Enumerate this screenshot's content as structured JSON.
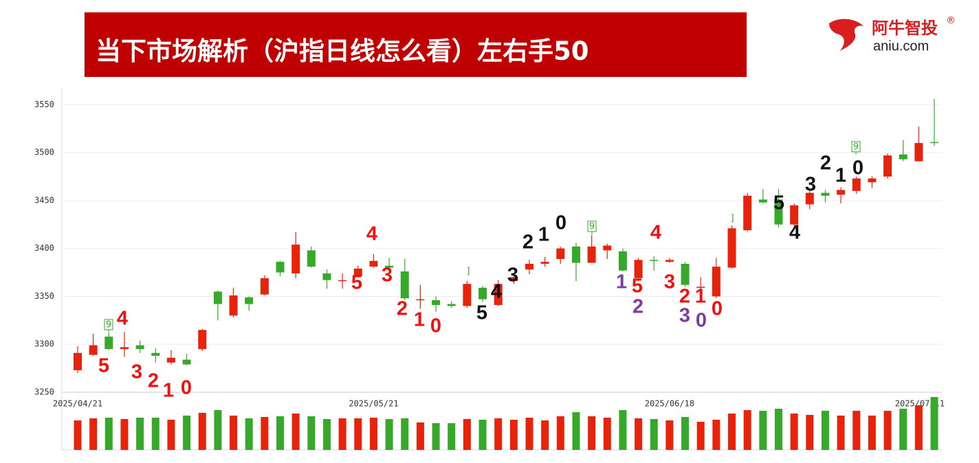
{
  "header": {
    "title": "当下市场解析（沪指日线怎么看）左右手50",
    "logo": "阿牛智投",
    "registered": "®",
    "site": "aniu.com"
  },
  "chart_data": {
    "type": "candlestick",
    "categories": [
      "2025/04/21",
      null,
      null,
      null,
      null,
      null,
      null,
      null,
      null,
      null,
      null,
      null,
      null,
      null,
      null,
      null,
      null,
      null,
      null,
      "2025/05/21",
      null,
      null,
      null,
      null,
      null,
      null,
      null,
      null,
      null,
      null,
      null,
      null,
      null,
      null,
      null,
      null,
      null,
      null,
      "2025/06/18",
      null,
      null,
      null,
      null,
      null,
      null,
      null,
      null,
      null,
      null,
      null,
      null,
      null,
      null,
      null,
      null,
      "2025/07/11"
    ],
    "open": [
      3273,
      3289,
      3308,
      3295,
      3299,
      3291,
      3281,
      3284,
      3295,
      3355,
      3330,
      3349,
      3352,
      3386,
      3374,
      3398,
      3374,
      3366,
      3371,
      3381,
      3382,
      3376,
      3346,
      3346,
      3342,
      3340,
      3359,
      3341,
      3366,
      3378,
      3384,
      3389,
      3402,
      3385,
      3398,
      3397,
      3369,
      3388,
      3386,
      3384,
      3359,
      3350,
      3380,
      3419,
      3451,
      3451,
      3425,
      3446,
      3458,
      3456,
      3460,
      3469,
      3475,
      3498,
      3491,
      3511
    ],
    "high": [
      3298,
      3311,
      3312,
      3313,
      3304,
      3296,
      3294,
      3290,
      3316,
      3356,
      3359,
      3350,
      3372,
      3387,
      3417,
      3402,
      3378,
      3374,
      3382,
      3394,
      3390,
      3389,
      3362,
      3350,
      3345,
      3366,
      3361,
      3367,
      3374,
      3388,
      3391,
      3402,
      3406,
      3414,
      3405,
      3400,
      3390,
      3392,
      3390,
      3386,
      3370,
      3390,
      3424,
      3458,
      3462,
      3462,
      3447,
      3460,
      3461,
      3464,
      3475,
      3475,
      3499,
      3513,
      3527,
      3556
    ],
    "low": [
      3270,
      3288,
      3294,
      3287,
      3291,
      3281,
      3279,
      3278,
      3293,
      3325,
      3328,
      3335,
      3351,
      3371,
      3369,
      3380,
      3358,
      3358,
      3370,
      3380,
      3372,
      3346,
      3337,
      3334,
      3338,
      3338,
      3344,
      3340,
      3363,
      3373,
      3381,
      3384,
      3366,
      3385,
      3389,
      3376,
      3366,
      3377,
      3385,
      3360,
      3350,
      3348,
      3379,
      3418,
      3447,
      3422,
      3423,
      3441,
      3448,
      3447,
      3457,
      3463,
      3473,
      3491,
      3491,
      3507
    ],
    "close": [
      3291,
      3299,
      3295,
      3297,
      3295,
      3288,
      3286,
      3279,
      3315,
      3342,
      3351,
      3342,
      3369,
      3375,
      3404,
      3381,
      3367,
      3367,
      3379,
      3387,
      3380,
      3348,
      3347,
      3341,
      3340,
      3363,
      3347,
      3363,
      3370,
      3384,
      3386,
      3400,
      3385,
      3402,
      3403,
      3377,
      3388,
      3387,
      3388,
      3362,
      3360,
      3381,
      3421,
      3455,
      3448,
      3425,
      3445,
      3458,
      3455,
      3461,
      3473,
      3473,
      3497,
      3493,
      3510,
      3510
    ],
    "volume": [
      43,
      46,
      47,
      45,
      47,
      47,
      44,
      50,
      54,
      58,
      50,
      46,
      48,
      49,
      53,
      49,
      45,
      46,
      46,
      47,
      45,
      46,
      40,
      39,
      39,
      45,
      44,
      46,
      44,
      47,
      43,
      49,
      55,
      49,
      47,
      58,
      46,
      45,
      43,
      48,
      41,
      44,
      53,
      58,
      57,
      60,
      53,
      51,
      57,
      50,
      57,
      50,
      57,
      60,
      65,
      77
    ],
    "up_color": "#e8230c",
    "down_color": "#36a82a",
    "ylim": [
      3250,
      3566
    ],
    "yticks": [
      3250,
      3300,
      3350,
      3400,
      3450,
      3500,
      3550
    ],
    "grid": true,
    "annotations": [
      {
        "text": "4",
        "color": "#f01010"
      },
      {
        "text": "5",
        "color": "#f01010"
      },
      {
        "text": "3",
        "color": "#f01010"
      },
      {
        "text": "2",
        "color": "#f01010"
      },
      {
        "text": "1",
        "color": "#f01010"
      },
      {
        "text": "0",
        "color": "#f01010"
      },
      {
        "text": "4",
        "color": "#f01010"
      },
      {
        "text": "3",
        "color": "#f01010"
      },
      {
        "text": "5",
        "color": "#f01010"
      },
      {
        "text": "2",
        "color": "#f01010"
      },
      {
        "text": "1",
        "color": "#f01010"
      },
      {
        "text": "0",
        "color": "#f01010"
      },
      {
        "text": "5",
        "color": "#111111"
      },
      {
        "text": "4",
        "color": "#111111"
      },
      {
        "text": "3",
        "color": "#111111"
      },
      {
        "text": "2",
        "color": "#111111"
      },
      {
        "text": "1",
        "color": "#111111"
      },
      {
        "text": "0",
        "color": "#111111"
      },
      {
        "text": "4",
        "color": "#f01010"
      },
      {
        "text": "1",
        "color": "#7a3c9e"
      },
      {
        "text": "5",
        "color": "#f01010"
      },
      {
        "text": "2",
        "color": "#7a3c9e"
      },
      {
        "text": "3",
        "color": "#f01010"
      },
      {
        "text": "2",
        "color": "#f01010"
      },
      {
        "text": "1",
        "color": "#f01010"
      },
      {
        "text": "0",
        "color": "#f01010"
      },
      {
        "text": "3",
        "color": "#7a3c9e"
      },
      {
        "text": "0",
        "color": "#7a3c9e"
      },
      {
        "text": "5",
        "color": "#111111"
      },
      {
        "text": "4",
        "color": "#111111"
      },
      {
        "text": "3",
        "color": "#111111"
      },
      {
        "text": "2",
        "color": "#111111"
      },
      {
        "text": "1",
        "color": "#111111"
      },
      {
        "text": "0",
        "color": "#111111"
      }
    ],
    "markers": [
      {
        "text": "9",
        "color": "#36a82a"
      },
      {
        "text": "]",
        "color": "#36a82a"
      },
      {
        "text": "9",
        "color": "#36a82a"
      },
      {
        "text": "]",
        "color": "#36a82a"
      },
      {
        "text": "9",
        "color": "#36a82a"
      }
    ]
  }
}
